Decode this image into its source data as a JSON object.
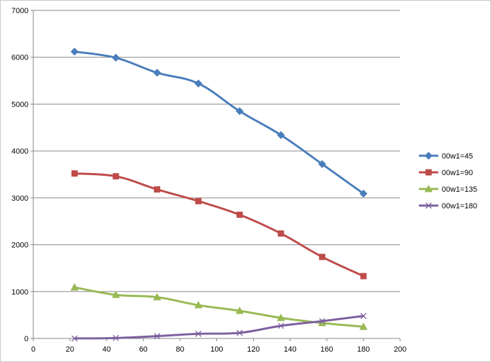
{
  "chart_data": {
    "type": "line",
    "title": "",
    "xlabel": "",
    "ylabel": "",
    "xlim": [
      0,
      200
    ],
    "ylim": [
      0,
      7000
    ],
    "xticks": [
      0,
      20,
      40,
      60,
      80,
      100,
      120,
      140,
      160,
      180,
      200
    ],
    "yticks": [
      0,
      1000,
      2000,
      3000,
      4000,
      5000,
      6000,
      7000
    ],
    "grid": "horizontal",
    "legend": "right",
    "x": [
      22.5,
      45,
      67.5,
      90,
      112.5,
      135,
      157.5,
      180
    ],
    "series": [
      {
        "name": "00w1=45",
        "color": "#4a7ebb",
        "marker": "diamond",
        "values": [
          6120,
          5990,
          5670,
          5440,
          4850,
          4340,
          3720,
          3090
        ]
      },
      {
        "name": "00w1=90",
        "color": "#be4b48",
        "marker": "square",
        "values": [
          3520,
          3460,
          3180,
          2930,
          2640,
          2240,
          1740,
          1330
        ]
      },
      {
        "name": "00w1=135",
        "color": "#98b954",
        "marker": "triangle",
        "values": [
          1090,
          930,
          880,
          710,
          590,
          440,
          330,
          250
        ]
      },
      {
        "name": "00w1=180",
        "color": "#7d5fa0",
        "marker": "x",
        "values": [
          0,
          10,
          50,
          100,
          120,
          270,
          370,
          480
        ]
      }
    ]
  }
}
